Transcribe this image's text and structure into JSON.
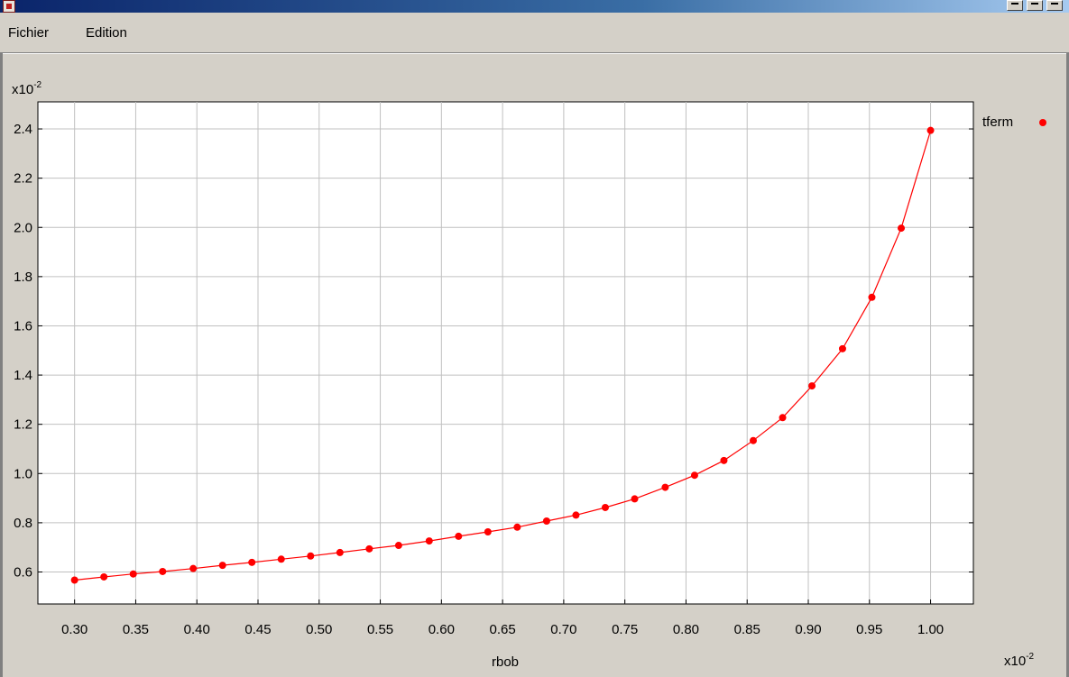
{
  "window": {
    "buttons": [
      "minimize",
      "maximize",
      "close"
    ]
  },
  "menu": {
    "file_label": "Fichier",
    "edit_label": "Edition"
  },
  "chart_data": {
    "type": "line",
    "xlabel": "rbob",
    "ylabel": "",
    "x_multiplier": "x10",
    "x_multiplier_exp": "-2",
    "y_multiplier": "x10",
    "y_multiplier_exp": "-2",
    "xlim": [
      0.27,
      1.035
    ],
    "ylim": [
      0.47,
      2.51
    ],
    "xticks": [
      "0.30",
      "0.35",
      "0.40",
      "0.45",
      "0.50",
      "0.55",
      "0.60",
      "0.65",
      "0.70",
      "0.75",
      "0.80",
      "0.85",
      "0.90",
      "0.95",
      "1.00"
    ],
    "yticks": [
      "0.6",
      "0.8",
      "1.0",
      "1.2",
      "1.4",
      "1.6",
      "1.8",
      "2.0",
      "2.2",
      "2.4"
    ],
    "grid": true,
    "legend_position": "right",
    "colors": {
      "series": "#ff0000",
      "grid": "#c0c0c0",
      "axes": "#000000"
    },
    "series": [
      {
        "name": "tferm",
        "x": [
          0.3,
          0.324,
          0.348,
          0.372,
          0.397,
          0.421,
          0.445,
          0.469,
          0.493,
          0.517,
          0.541,
          0.565,
          0.59,
          0.614,
          0.638,
          0.662,
          0.686,
          0.71,
          0.734,
          0.758,
          0.783,
          0.807,
          0.831,
          0.855,
          0.879,
          0.903,
          0.928,
          0.952,
          0.976,
          1.0
        ],
        "y": [
          0.567,
          0.58,
          0.592,
          0.602,
          0.614,
          0.627,
          0.639,
          0.652,
          0.665,
          0.679,
          0.694,
          0.708,
          0.726,
          0.745,
          0.763,
          0.782,
          0.807,
          0.831,
          0.862,
          0.897,
          0.944,
          0.993,
          1.053,
          1.134,
          1.227,
          1.356,
          1.507,
          1.716,
          1.997,
          2.394
        ]
      }
    ]
  }
}
